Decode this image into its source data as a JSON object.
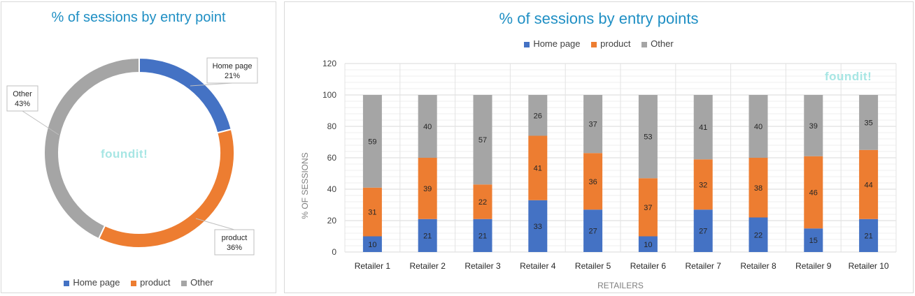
{
  "colors": {
    "home": "#4472c4",
    "product": "#ed7d31",
    "other": "#a5a5a5",
    "title": "#1f8fc4",
    "watermark": "#a7e6e4"
  },
  "watermark": "foundit!",
  "legend": {
    "home_label": "Home page",
    "product_label": "product",
    "other_label": "Other"
  },
  "chart_data": [
    {
      "type": "pie",
      "subtype": "donut",
      "title": "% of sessions  by entry point",
      "labels": [
        "Home page",
        "product",
        "Other"
      ],
      "values": [
        21,
        36,
        43
      ],
      "value_labels": [
        "21%",
        "36%",
        "43%"
      ],
      "legend_position": "bottom"
    },
    {
      "type": "bar",
      "stacked": true,
      "title": "% of sessions by entry points",
      "categories": [
        "Retailer 1",
        "Retailer 2",
        "Retailer 3",
        "Retailer 4",
        "Retailer 5",
        "Retailer 6",
        "Retailer 7",
        "Retailer 8",
        "Retailer 9",
        "Retailer 10"
      ],
      "series": [
        {
          "name": "Home page",
          "values": [
            10,
            21,
            21,
            33,
            27,
            10,
            27,
            22,
            15,
            21
          ]
        },
        {
          "name": "product",
          "values": [
            31,
            39,
            22,
            41,
            36,
            37,
            32,
            38,
            46,
            44
          ]
        },
        {
          "name": "Other",
          "values": [
            59,
            40,
            57,
            26,
            37,
            53,
            41,
            40,
            39,
            35
          ]
        }
      ],
      "xlabel": "RETAILERS",
      "ylabel": "% OF SESSIONS",
      "ylim": [
        0,
        120
      ],
      "yticks": [
        "0",
        "20",
        "40",
        "60",
        "80",
        "100",
        "120"
      ],
      "grid": true,
      "legend_position": "top"
    }
  ]
}
